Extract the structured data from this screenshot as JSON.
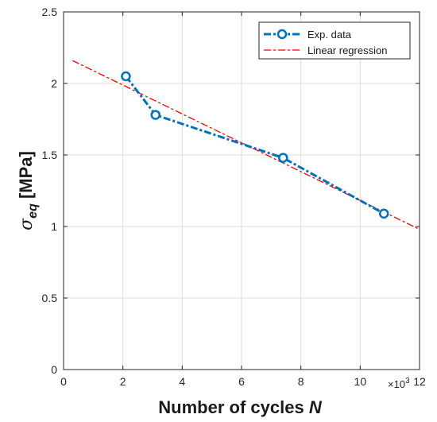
{
  "chart_data": {
    "type": "line",
    "xlabel": "Number of cycles",
    "xlabel_var": "N",
    "ylabel_symbol": "σ",
    "ylabel_sub": "eq",
    "ylabel_unit": "[MPa]",
    "x_multiplier": "×10",
    "x_multiplier_exp": "3",
    "xlim": [
      0,
      12
    ],
    "ylim": [
      0,
      2.5
    ],
    "xticks": [
      0,
      2,
      4,
      6,
      8,
      10,
      12
    ],
    "yticks": [
      0,
      0.5,
      1,
      1.5,
      2,
      2.5
    ],
    "xtick_labels": [
      "0",
      "2",
      "4",
      "6",
      "8",
      "10",
      "12"
    ],
    "ytick_labels": [
      "0",
      "0.5",
      "1",
      "1.5",
      "2",
      "2.5"
    ],
    "grid": true,
    "legend_position": "top-right",
    "series": [
      {
        "name": "Exp. data",
        "color": "#0072BD",
        "style": "dash-dot with circle markers",
        "x": [
          2.1,
          3.1,
          7.4,
          10.8
        ],
        "y": [
          2.05,
          1.78,
          1.48,
          1.09
        ]
      },
      {
        "name": "Linear regression",
        "color": "#FF0000",
        "style": "dash-dot",
        "x": [
          0.3,
          12.0
        ],
        "y": [
          2.16,
          0.98
        ]
      }
    ]
  }
}
